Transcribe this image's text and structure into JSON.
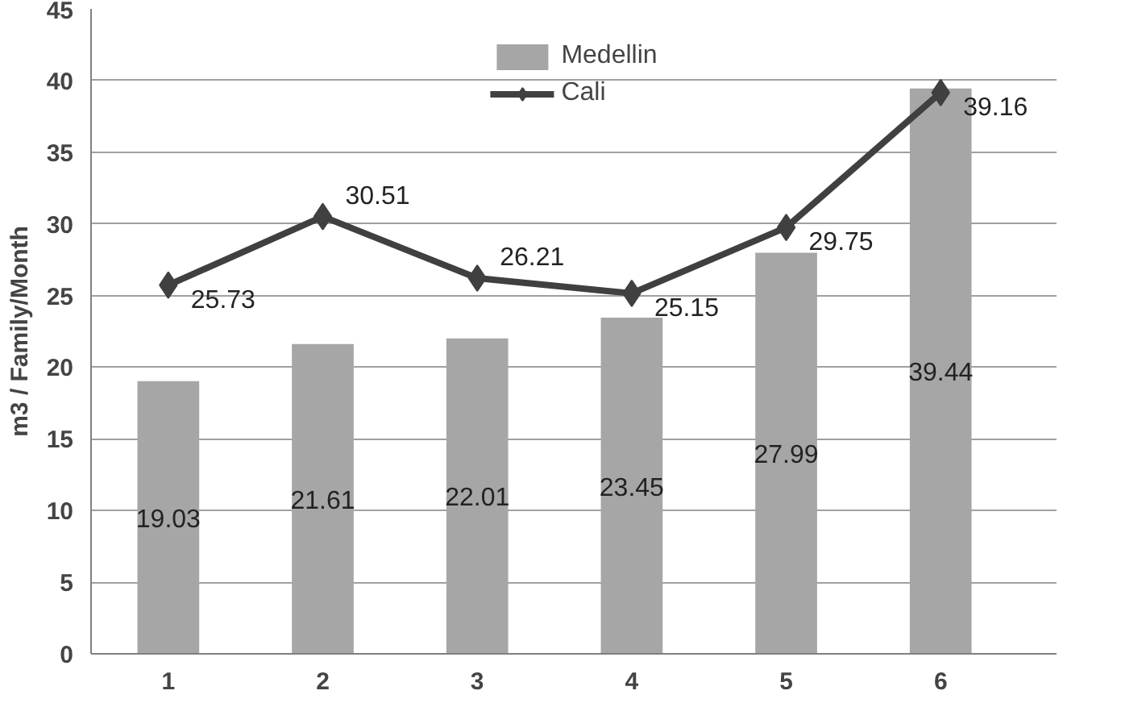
{
  "chart_data": {
    "type": "bar",
    "ylabel": "m3 / Family/Month",
    "categories": [
      "1",
      "2",
      "3",
      "4",
      "5",
      "6"
    ],
    "series": [
      {
        "name": "Medellin",
        "color": "#a6a6a6",
        "values": [
          19.03,
          21.61,
          22.01,
          23.45,
          27.99,
          39.44
        ]
      },
      {
        "name": "Cali",
        "type": "line",
        "color": "#404040",
        "values": [
          25.73,
          30.51,
          26.21,
          25.15,
          29.75,
          39.16
        ]
      }
    ],
    "ylim": [
      0,
      45
    ],
    "yticks": [
      0,
      5,
      10,
      15,
      20,
      25,
      30,
      35,
      40,
      45
    ],
    "grid": "y",
    "legend": "top",
    "marker": "diamond",
    "line_style": "solid",
    "data_labels": true
  }
}
